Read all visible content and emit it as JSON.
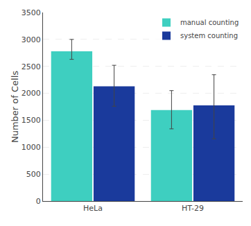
{
  "chart_data": {
    "type": "bar",
    "categories": [
      "HeLa",
      "HT-29"
    ],
    "series": [
      {
        "name": "manual counting",
        "color": "#3ECFC0",
        "values": [
          2780,
          1690
        ],
        "errors_low": [
          150,
          350
        ],
        "errors_high": [
          220,
          360
        ]
      },
      {
        "name": "system counting",
        "color": "#1A3A9C",
        "values": [
          2130,
          1775
        ],
        "errors_low": [
          370,
          620
        ],
        "errors_high": [
          390,
          570
        ]
      }
    ],
    "ylabel": "Number of Cells",
    "ylim": [
      0,
      3500
    ],
    "yticks": [
      0,
      500,
      1000,
      1500,
      2000,
      2500,
      3000,
      3500
    ],
    "grid": true,
    "legend": "upper right"
  }
}
